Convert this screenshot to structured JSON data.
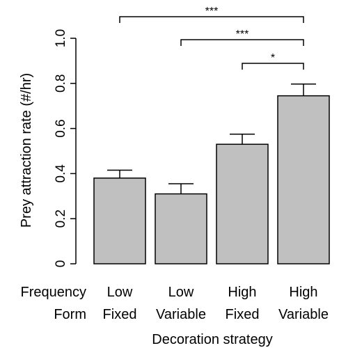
{
  "chart_data": {
    "type": "bar",
    "title": "",
    "xlabel": "Decoration strategy",
    "ylabel": "Prey attraction rate (#/hr)",
    "ylim": [
      0,
      1.0
    ],
    "yticks": [
      "0",
      "0.2",
      "0.4",
      "0.6",
      "0.8",
      "1.0"
    ],
    "grid": false,
    "bar_color": "#c0c0c0",
    "row_labels": [
      "Frequency",
      "Form"
    ],
    "categories": [
      {
        "frequency": "Low",
        "form": "Fixed"
      },
      {
        "frequency": "Low",
        "form": "Variable"
      },
      {
        "frequency": "High",
        "form": "Fixed"
      },
      {
        "frequency": "High",
        "form": "Variable"
      }
    ],
    "values": [
      0.38,
      0.31,
      0.53,
      0.745
    ],
    "errors": [
      0.035,
      0.045,
      0.045,
      0.052
    ],
    "significance": [
      {
        "from": 0,
        "to": 3,
        "label": "***"
      },
      {
        "from": 1,
        "to": 3,
        "label": "***"
      },
      {
        "from": 2,
        "to": 3,
        "label": "*"
      }
    ]
  }
}
